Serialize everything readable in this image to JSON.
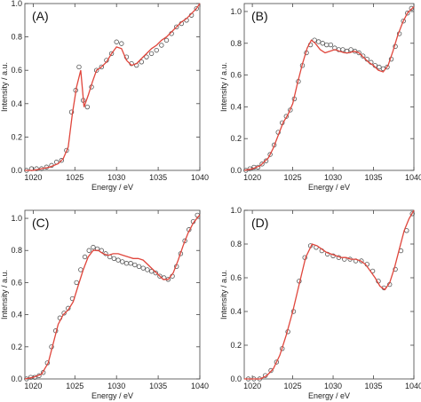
{
  "chart_data": [
    {
      "panel_label": "(A)",
      "type": "scatter+line",
      "xlabel": "Energy / eV",
      "ylabel": "Intensity / a.u.",
      "xlim": [
        1019,
        1040
      ],
      "ylim": [
        0,
        1.0
      ],
      "xticks": [
        1020,
        1025,
        1030,
        1035,
        1040
      ],
      "yticks": [
        0.0,
        0.2,
        0.4,
        0.6,
        0.8,
        1.0
      ],
      "series": [
        {
          "style": "markers",
          "x": [
            1019.2,
            1019.8,
            1020.4,
            1021.0,
            1021.6,
            1022.2,
            1022.8,
            1023.4,
            1024.0,
            1024.6,
            1025.1,
            1025.5,
            1026.0,
            1026.5,
            1027.0,
            1027.6,
            1028.2,
            1028.8,
            1029.4,
            1030.0,
            1030.6,
            1031.2,
            1031.8,
            1032.4,
            1033.0,
            1033.6,
            1034.2,
            1034.8,
            1035.4,
            1036.0,
            1036.6,
            1037.2,
            1037.8,
            1038.4,
            1039.0,
            1039.6
          ],
          "y": [
            0.0,
            0.01,
            0.01,
            0.01,
            0.02,
            0.03,
            0.05,
            0.06,
            0.12,
            0.35,
            0.48,
            0.62,
            0.42,
            0.38,
            0.5,
            0.6,
            0.62,
            0.66,
            0.7,
            0.77,
            0.76,
            0.68,
            0.64,
            0.63,
            0.65,
            0.68,
            0.7,
            0.72,
            0.75,
            0.78,
            0.82,
            0.86,
            0.88,
            0.9,
            0.93,
            0.97
          ]
        },
        {
          "style": "line",
          "color": "#e0463c",
          "x": [
            1019.0,
            1020.0,
            1021.0,
            1022.0,
            1023.0,
            1023.6,
            1024.2,
            1024.7,
            1025.2,
            1025.7,
            1026.1,
            1026.6,
            1027.1,
            1027.6,
            1028.2,
            1028.8,
            1029.4,
            1030.0,
            1030.6,
            1031.2,
            1031.8,
            1032.4,
            1033.0,
            1033.6,
            1034.2,
            1034.8,
            1035.4,
            1036.0,
            1036.6,
            1037.2,
            1037.8,
            1038.4,
            1039.0,
            1039.6,
            1040.0
          ],
          "y": [
            0.0,
            0.0,
            0.01,
            0.02,
            0.04,
            0.07,
            0.14,
            0.34,
            0.5,
            0.6,
            0.38,
            0.45,
            0.53,
            0.6,
            0.62,
            0.65,
            0.7,
            0.74,
            0.73,
            0.66,
            0.63,
            0.64,
            0.67,
            0.7,
            0.73,
            0.75,
            0.78,
            0.8,
            0.83,
            0.86,
            0.89,
            0.91,
            0.94,
            0.97,
            1.0
          ]
        }
      ]
    },
    {
      "panel_label": "(B)",
      "type": "scatter+line",
      "xlabel": "Energy / eV",
      "ylabel": "Intensity / a.u.",
      "xlim": [
        1019,
        1040
      ],
      "ylim": [
        0,
        1.05
      ],
      "xticks": [
        1020,
        1025,
        1030,
        1035,
        1040
      ],
      "yticks": [
        0.0,
        0.2,
        0.4,
        0.6,
        0.8,
        1.0
      ],
      "series": [
        {
          "style": "markers",
          "x": [
            1019.2,
            1019.7,
            1020.2,
            1020.7,
            1021.2,
            1021.7,
            1022.2,
            1022.7,
            1023.2,
            1023.7,
            1024.2,
            1024.7,
            1025.2,
            1025.7,
            1026.2,
            1026.7,
            1027.2,
            1027.7,
            1028.2,
            1028.7,
            1029.2,
            1029.7,
            1030.2,
            1030.7,
            1031.2,
            1031.7,
            1032.2,
            1032.7,
            1033.2,
            1033.7,
            1034.2,
            1034.7,
            1035.2,
            1035.7,
            1036.2,
            1036.7,
            1037.2,
            1037.7,
            1038.2,
            1038.7,
            1039.2,
            1039.7
          ],
          "y": [
            0.0,
            0.01,
            0.02,
            0.02,
            0.04,
            0.06,
            0.1,
            0.16,
            0.24,
            0.3,
            0.34,
            0.38,
            0.45,
            0.56,
            0.66,
            0.74,
            0.79,
            0.82,
            0.81,
            0.8,
            0.79,
            0.79,
            0.77,
            0.76,
            0.76,
            0.75,
            0.76,
            0.75,
            0.74,
            0.72,
            0.7,
            0.68,
            0.66,
            0.65,
            0.64,
            0.65,
            0.7,
            0.78,
            0.86,
            0.94,
            0.99,
            1.02
          ]
        },
        {
          "style": "line",
          "color": "#e0463c",
          "x": [
            1019.0,
            1020.0,
            1021.0,
            1022.0,
            1022.6,
            1023.2,
            1023.8,
            1024.4,
            1025.0,
            1025.6,
            1026.2,
            1026.8,
            1027.3,
            1027.8,
            1028.4,
            1029.0,
            1029.6,
            1030.2,
            1030.8,
            1031.4,
            1032.0,
            1032.6,
            1033.2,
            1033.8,
            1034.4,
            1035.0,
            1035.6,
            1036.2,
            1036.8,
            1037.4,
            1038.0,
            1038.6,
            1039.2,
            1039.8,
            1040.0
          ],
          "y": [
            0.0,
            0.01,
            0.03,
            0.08,
            0.14,
            0.22,
            0.3,
            0.35,
            0.42,
            0.55,
            0.67,
            0.77,
            0.82,
            0.8,
            0.76,
            0.74,
            0.75,
            0.76,
            0.75,
            0.74,
            0.74,
            0.75,
            0.74,
            0.71,
            0.68,
            0.66,
            0.63,
            0.62,
            0.66,
            0.75,
            0.85,
            0.93,
            0.99,
            1.02,
            1.03
          ]
        }
      ]
    },
    {
      "panel_label": "(C)",
      "type": "scatter+line",
      "xlabel": "Energy / eV",
      "ylabel": "Intensity / a.u.",
      "xlim": [
        1019,
        1040
      ],
      "ylim": [
        0,
        1.05
      ],
      "xticks": [
        1020,
        1025,
        1030,
        1035,
        1040
      ],
      "yticks": [
        0.0,
        0.2,
        0.4,
        0.6,
        0.8,
        1.0
      ],
      "series": [
        {
          "style": "markers",
          "x": [
            1019.2,
            1019.7,
            1020.2,
            1020.7,
            1021.2,
            1021.7,
            1022.2,
            1022.7,
            1023.2,
            1023.7,
            1024.2,
            1024.7,
            1025.2,
            1025.7,
            1026.2,
            1026.7,
            1027.2,
            1027.7,
            1028.2,
            1028.7,
            1029.2,
            1029.7,
            1030.2,
            1030.7,
            1031.2,
            1031.7,
            1032.2,
            1032.7,
            1033.2,
            1033.7,
            1034.2,
            1034.7,
            1035.2,
            1035.7,
            1036.2,
            1036.7,
            1037.2,
            1037.7,
            1038.2,
            1038.7,
            1039.2,
            1039.7
          ],
          "y": [
            0.0,
            0.01,
            0.01,
            0.02,
            0.04,
            0.1,
            0.2,
            0.3,
            0.38,
            0.41,
            0.44,
            0.5,
            0.6,
            0.68,
            0.76,
            0.8,
            0.82,
            0.81,
            0.8,
            0.78,
            0.76,
            0.75,
            0.74,
            0.73,
            0.72,
            0.72,
            0.71,
            0.7,
            0.69,
            0.68,
            0.67,
            0.66,
            0.64,
            0.63,
            0.62,
            0.64,
            0.7,
            0.78,
            0.86,
            0.93,
            0.98,
            1.02
          ]
        },
        {
          "style": "line",
          "color": "#e0463c",
          "x": [
            1019.0,
            1020.0,
            1021.0,
            1021.8,
            1022.4,
            1023.0,
            1023.6,
            1024.2,
            1024.8,
            1025.4,
            1026.0,
            1026.6,
            1027.2,
            1027.8,
            1028.4,
            1029.0,
            1029.6,
            1030.2,
            1030.8,
            1031.4,
            1032.0,
            1032.6,
            1033.2,
            1033.8,
            1034.4,
            1035.0,
            1035.6,
            1036.2,
            1036.8,
            1037.4,
            1038.0,
            1038.6,
            1039.2,
            1039.8,
            1040.0
          ],
          "y": [
            0.0,
            0.01,
            0.03,
            0.1,
            0.22,
            0.34,
            0.4,
            0.43,
            0.48,
            0.58,
            0.68,
            0.76,
            0.8,
            0.8,
            0.78,
            0.77,
            0.78,
            0.78,
            0.77,
            0.76,
            0.75,
            0.75,
            0.74,
            0.71,
            0.68,
            0.65,
            0.62,
            0.62,
            0.66,
            0.74,
            0.83,
            0.91,
            0.97,
            1.01,
            1.02
          ]
        }
      ]
    },
    {
      "panel_label": "(D)",
      "type": "scatter+line",
      "xlabel": "Energy / eV",
      "ylabel": "Intensity / a.u.",
      "xlim": [
        1019,
        1040
      ],
      "ylim": [
        0,
        1.0
      ],
      "xticks": [
        1020,
        1025,
        1030,
        1035,
        1040
      ],
      "yticks": [
        0.0,
        0.2,
        0.4,
        0.6,
        0.8,
        1.0
      ],
      "series": [
        {
          "style": "markers",
          "x": [
            1019.5,
            1020.2,
            1020.9,
            1021.6,
            1022.3,
            1023.0,
            1023.7,
            1024.4,
            1025.1,
            1025.8,
            1026.5,
            1027.2,
            1027.9,
            1028.6,
            1029.3,
            1030.0,
            1030.7,
            1031.4,
            1032.1,
            1032.8,
            1033.5,
            1034.2,
            1034.9,
            1035.6,
            1036.3,
            1037.0,
            1037.7,
            1038.4,
            1039.1,
            1039.8
          ],
          "y": [
            0.0,
            0.0,
            0.0,
            0.02,
            0.05,
            0.1,
            0.18,
            0.28,
            0.4,
            0.58,
            0.72,
            0.79,
            0.78,
            0.76,
            0.74,
            0.73,
            0.72,
            0.71,
            0.71,
            0.7,
            0.7,
            0.68,
            0.64,
            0.58,
            0.54,
            0.56,
            0.65,
            0.76,
            0.88,
            0.98
          ]
        },
        {
          "style": "line",
          "color": "#e0463c",
          "x": [
            1019.0,
            1020.0,
            1021.0,
            1021.8,
            1022.6,
            1023.4,
            1024.2,
            1025.0,
            1025.8,
            1026.6,
            1027.4,
            1028.0,
            1028.6,
            1029.2,
            1029.8,
            1030.4,
            1031.0,
            1031.6,
            1032.2,
            1032.8,
            1033.4,
            1034.0,
            1034.6,
            1035.2,
            1035.8,
            1036.4,
            1037.0,
            1037.6,
            1038.2,
            1038.8,
            1039.4,
            1040.0
          ],
          "y": [
            0.0,
            0.0,
            0.0,
            0.02,
            0.06,
            0.14,
            0.26,
            0.4,
            0.56,
            0.72,
            0.8,
            0.79,
            0.77,
            0.75,
            0.74,
            0.73,
            0.72,
            0.72,
            0.71,
            0.71,
            0.7,
            0.68,
            0.64,
            0.6,
            0.55,
            0.53,
            0.57,
            0.66,
            0.77,
            0.88,
            0.95,
            1.0
          ]
        }
      ]
    }
  ]
}
